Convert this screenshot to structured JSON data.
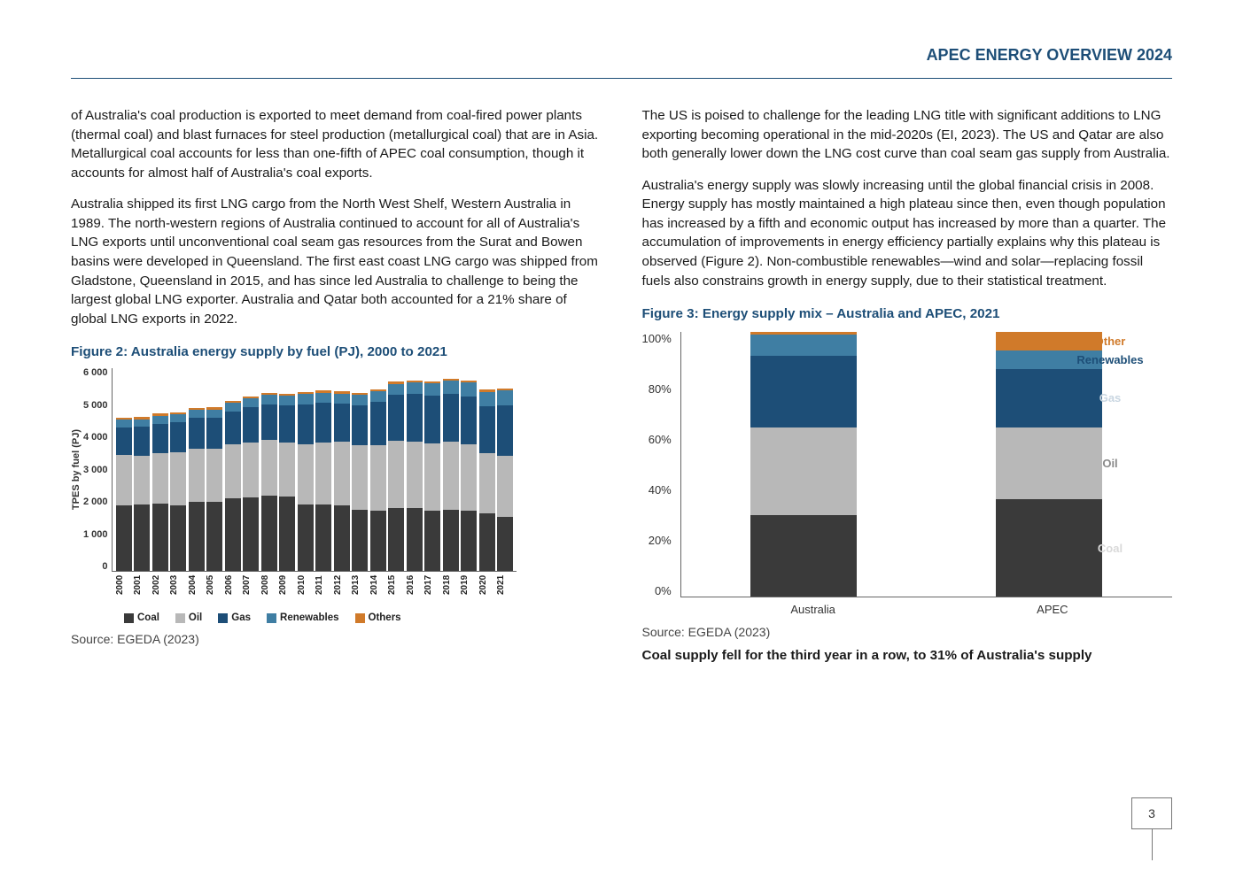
{
  "header": {
    "title": "APEC ENERGY OVERVIEW 2024"
  },
  "page_number": "3",
  "left": {
    "para1": "of Australia's coal production is exported to meet demand from coal-fired power plants (thermal coal) and blast furnaces for steel production (metallurgical coal) that are in Asia. Metallurgical coal accounts for less than one-fifth of APEC coal consumption, though it accounts for almost half of Australia's coal exports.",
    "para2": "Australia shipped its first LNG cargo from the North West Shelf, Western Australia in 1989. The north-western regions of Australia continued to account for all of Australia's LNG exports until unconventional coal seam gas resources from the Surat and Bowen basins were developed in Queensland. The first east coast LNG cargo was shipped from Gladstone, Queensland in 2015, and has since led Australia to challenge to being the largest global LNG exporter. Australia and Qatar both accounted for a 21% share of global LNG exports in 2022.",
    "fig2_title": "Figure 2: Australia energy supply by fuel (PJ), 2000 to 2021",
    "fig2_source": "Source: EGEDA (2023)"
  },
  "right": {
    "para1": "The US is poised to challenge for the leading LNG title with significant additions to LNG exporting becoming operational in the mid-2020s (EI, 2023). The US and Qatar are also both generally lower down the LNG cost curve than coal seam gas supply from Australia.",
    "para2": "Australia's energy supply was slowly increasing until the global financial crisis in 2008. Energy supply has mostly maintained a high plateau since then, even though population has increased by a fifth and economic output has increased by more than a quarter. The accumulation of improvements in energy efficiency partially explains why this plateau is observed (Figure 2). Non-combustible renewables—wind and solar—replacing fossil fuels also constrains growth in energy supply, due to their statistical treatment.",
    "fig3_title": "Figure 3: Energy supply mix – Australia and APEC, 2021",
    "fig3_source": "Source: EGEDA (2023)",
    "para3": "Coal supply fell for the third year in a row, to 31% of Australia's supply"
  },
  "fig2": {
    "type": "stacked-bar",
    "ylabel": "TPES by fuel (PJ)",
    "ymax": 6000,
    "yticks": [
      "6 000",
      "5 000",
      "4 000",
      "3 000",
      "2 000",
      "1 000",
      " 0"
    ],
    "years": [
      "2000",
      "2001",
      "2002",
      "2003",
      "2004",
      "2005",
      "2006",
      "2007",
      "2008",
      "2009",
      "2010",
      "2011",
      "2012",
      "2013",
      "2014",
      "2015",
      "2016",
      "2017",
      "2018",
      "2019",
      "2020",
      "2021"
    ],
    "series": [
      "Coal",
      "Oil",
      "Gas",
      "Renewables",
      "Others"
    ],
    "colors": {
      "Coal": "#3a3a3a",
      "Oil": "#b8b8b8",
      "Gas": "#1d4e77",
      "Renewables": "#3f7ea3",
      "Others": "#d07a2a"
    },
    "data": [
      {
        "Coal": 1950,
        "Oil": 1470,
        "Gas": 820,
        "Renewables": 220,
        "Others": 60
      },
      {
        "Coal": 1960,
        "Oil": 1450,
        "Gas": 840,
        "Renewables": 230,
        "Others": 60
      },
      {
        "Coal": 1980,
        "Oil": 1500,
        "Gas": 870,
        "Renewables": 235,
        "Others": 60
      },
      {
        "Coal": 1950,
        "Oil": 1550,
        "Gas": 890,
        "Renewables": 240,
        "Others": 60
      },
      {
        "Coal": 2050,
        "Oil": 1560,
        "Gas": 900,
        "Renewables": 240,
        "Others": 60
      },
      {
        "Coal": 2040,
        "Oil": 1570,
        "Gas": 910,
        "Renewables": 245,
        "Others": 60
      },
      {
        "Coal": 2150,
        "Oil": 1600,
        "Gas": 960,
        "Renewables": 250,
        "Others": 60
      },
      {
        "Coal": 2180,
        "Oil": 1620,
        "Gas": 1040,
        "Renewables": 260,
        "Others": 60
      },
      {
        "Coal": 2230,
        "Oil": 1640,
        "Gas": 1050,
        "Renewables": 275,
        "Others": 60
      },
      {
        "Coal": 2200,
        "Oil": 1600,
        "Gas": 1090,
        "Renewables": 280,
        "Others": 60
      },
      {
        "Coal": 1970,
        "Oil": 1770,
        "Gas": 1180,
        "Renewables": 300,
        "Others": 60
      },
      {
        "Coal": 1970,
        "Oil": 1830,
        "Gas": 1160,
        "Renewables": 300,
        "Others": 60
      },
      {
        "Coal": 1940,
        "Oil": 1870,
        "Gas": 1120,
        "Renewables": 310,
        "Others": 60
      },
      {
        "Coal": 1800,
        "Oil": 1910,
        "Gas": 1170,
        "Renewables": 320,
        "Others": 60
      },
      {
        "Coal": 1780,
        "Oil": 1940,
        "Gas": 1260,
        "Renewables": 320,
        "Others": 60
      },
      {
        "Coal": 1870,
        "Oil": 1970,
        "Gas": 1350,
        "Renewables": 330,
        "Others": 60
      },
      {
        "Coal": 1870,
        "Oil": 1960,
        "Gas": 1390,
        "Renewables": 350,
        "Others": 60
      },
      {
        "Coal": 1790,
        "Oil": 1980,
        "Gas": 1400,
        "Renewables": 370,
        "Others": 60
      },
      {
        "Coal": 1800,
        "Oil": 2020,
        "Gas": 1410,
        "Renewables": 380,
        "Others": 60
      },
      {
        "Coal": 1790,
        "Oil": 1960,
        "Gas": 1410,
        "Renewables": 400,
        "Others": 60
      },
      {
        "Coal": 1700,
        "Oil": 1780,
        "Gas": 1380,
        "Renewables": 430,
        "Others": 60
      },
      {
        "Coal": 1600,
        "Oil": 1800,
        "Gas": 1480,
        "Renewables": 440,
        "Others": 60
      }
    ],
    "legend": [
      "Coal",
      "Oil",
      "Gas",
      "Renewables",
      "Others"
    ]
  },
  "fig3": {
    "type": "stacked-bar-pct",
    "yticks": [
      "100%",
      "80%",
      "60%",
      "40%",
      "20%",
      "0%"
    ],
    "categories": [
      "Australia",
      "APEC"
    ],
    "series": [
      "Coal",
      "Oil",
      "Gas",
      "Renewables",
      "Other"
    ],
    "colors": {
      "Coal": "#3a3a3a",
      "Oil": "#b8b8b8",
      "Gas": "#1d4e77",
      "Renewables": "#3f7ea3",
      "Other": "#d07a2a"
    },
    "label_colors": {
      "Coal": "#d9d9d9",
      "Oil": "#8a8a8a",
      "Gas": "#c9d6e1",
      "Renewables": "#1d4e77",
      "Other": "#d07a2a"
    },
    "data": [
      {
        "Coal": 31,
        "Oil": 33,
        "Gas": 27,
        "Renewables": 8,
        "Other": 1
      },
      {
        "Coal": 37,
        "Oil": 27,
        "Gas": 22,
        "Renewables": 7,
        "Other": 7
      }
    ],
    "legend_pos": "in-bar-right"
  }
}
